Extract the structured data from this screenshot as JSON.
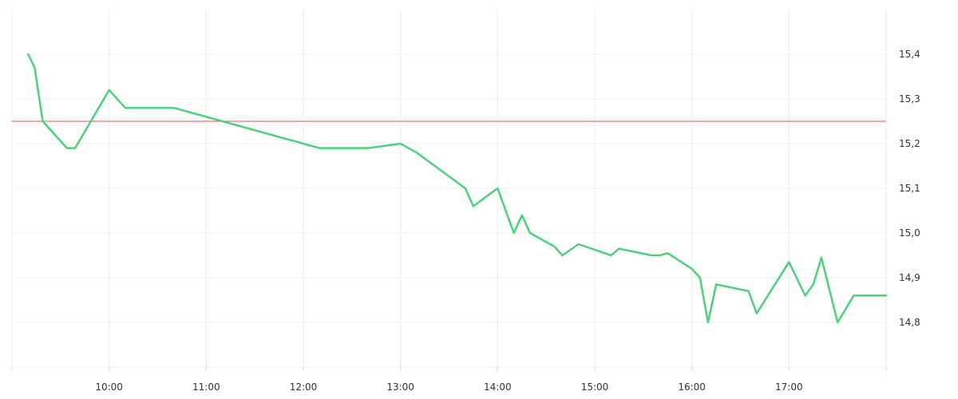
{
  "chart_data": {
    "type": "line",
    "title": "",
    "xlabel": "",
    "ylabel": "",
    "y_axis_side": "right",
    "grid": true,
    "x_range": [
      "09:00",
      "18:00"
    ],
    "ylim": [
      14.7,
      15.5
    ],
    "x_ticks": [
      "10:00",
      "11:00",
      "12:00",
      "13:00",
      "14:00",
      "15:00",
      "16:00",
      "17:00"
    ],
    "y_ticks": [
      {
        "value": 14.8,
        "label": "14,8"
      },
      {
        "value": 14.9,
        "label": "14,9"
      },
      {
        "value": 15.0,
        "label": "15,0"
      },
      {
        "value": 15.1,
        "label": "15,1"
      },
      {
        "value": 15.2,
        "label": "15,2"
      },
      {
        "value": 15.3,
        "label": "15,3"
      },
      {
        "value": 15.4,
        "label": "15,4"
      }
    ],
    "reference_line": {
      "value": 15.25,
      "color": "#e05050"
    },
    "series": [
      {
        "color": "#4cd17a",
        "points": [
          {
            "x": "09:10",
            "y": 15.4
          },
          {
            "x": "09:14",
            "y": 15.37
          },
          {
            "x": "09:19",
            "y": 15.25
          },
          {
            "x": "09:34",
            "y": 15.19
          },
          {
            "x": "09:39",
            "y": 15.19
          },
          {
            "x": "10:00",
            "y": 15.32
          },
          {
            "x": "10:10",
            "y": 15.28
          },
          {
            "x": "10:40",
            "y": 15.28
          },
          {
            "x": "12:10",
            "y": 15.19
          },
          {
            "x": "12:40",
            "y": 15.19
          },
          {
            "x": "13:00",
            "y": 15.2
          },
          {
            "x": "13:10",
            "y": 15.18
          },
          {
            "x": "13:40",
            "y": 15.1
          },
          {
            "x": "13:45",
            "y": 15.06
          },
          {
            "x": "14:00",
            "y": 15.1
          },
          {
            "x": "14:10",
            "y": 15.0
          },
          {
            "x": "14:15",
            "y": 15.04
          },
          {
            "x": "14:20",
            "y": 15.0
          },
          {
            "x": "14:35",
            "y": 14.97
          },
          {
            "x": "14:40",
            "y": 14.95
          },
          {
            "x": "14:50",
            "y": 14.975
          },
          {
            "x": "15:10",
            "y": 14.95
          },
          {
            "x": "15:15",
            "y": 14.965
          },
          {
            "x": "15:35",
            "y": 14.95
          },
          {
            "x": "15:40",
            "y": 14.95
          },
          {
            "x": "15:45",
            "y": 14.955
          },
          {
            "x": "16:00",
            "y": 14.92
          },
          {
            "x": "16:05",
            "y": 14.9
          },
          {
            "x": "16:10",
            "y": 14.8
          },
          {
            "x": "16:15",
            "y": 14.885
          },
          {
            "x": "16:35",
            "y": 14.87
          },
          {
            "x": "16:40",
            "y": 14.82
          },
          {
            "x": "17:00",
            "y": 14.935
          },
          {
            "x": "17:10",
            "y": 14.86
          },
          {
            "x": "17:15",
            "y": 14.885
          },
          {
            "x": "17:20",
            "y": 14.945
          },
          {
            "x": "17:30",
            "y": 14.8
          },
          {
            "x": "17:40",
            "y": 14.86
          },
          {
            "x": "18:00",
            "y": 14.86
          }
        ]
      }
    ]
  }
}
